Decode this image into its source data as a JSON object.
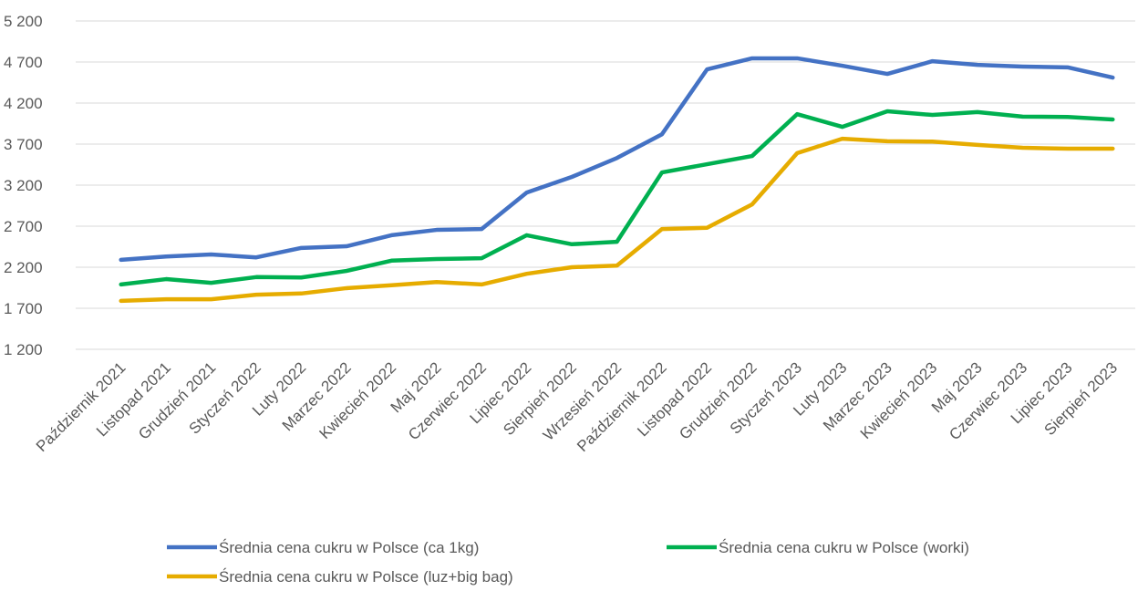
{
  "chart_data": {
    "type": "line",
    "categories": [
      "Październik 2021",
      "Listopad 2021",
      "Grudzień 2021",
      "Styczeń 2022",
      "Luty 2022",
      "Marzec 2022",
      "Kwiecień 2022",
      "Maj 2022",
      "Czerwiec 2022",
      "Lipiec 2022",
      "Sierpień 2022",
      "Wrzesień 2022",
      "Październik 2022",
      "Listopad 2022",
      "Grudzień 2022",
      "Styczeń 2023",
      "Luty 2023",
      "Marzec 2023",
      "Kwiecień 2023",
      "Maj 2023",
      "Czerwiec 2023",
      "Lipiec 2023",
      "Sierpień 2023"
    ],
    "series": [
      {
        "name": "Średnia cena cukru w Polsce (ca 1kg)",
        "color": "#4472c4",
        "values": [
          2290,
          2330,
          2355,
          2320,
          2435,
          2455,
          2590,
          2655,
          2665,
          3110,
          3300,
          3530,
          3820,
          4610,
          4745,
          4745,
          4655,
          4555,
          4710,
          4665,
          4645,
          4635,
          4510
        ]
      },
      {
        "name": "Średnia cena cukru w Polsce (worki)",
        "color": "#00b050",
        "values": [
          1990,
          2055,
          2010,
          2080,
          2075,
          2155,
          2280,
          2300,
          2310,
          2590,
          2480,
          2510,
          3355,
          3455,
          3555,
          4065,
          3910,
          4100,
          4055,
          4090,
          4035,
          4030,
          4000
        ]
      },
      {
        "name": "Średnia cena cukru w Polsce (luz+big bag)",
        "color": "#e6ac00",
        "values": [
          1790,
          1810,
          1810,
          1865,
          1880,
          1945,
          1980,
          2020,
          1990,
          2120,
          2200,
          2220,
          2665,
          2680,
          2965,
          3590,
          3765,
          3735,
          3730,
          3690,
          3655,
          3645,
          3645
        ]
      }
    ],
    "ylim": [
      1200,
      5200
    ],
    "yticks": [
      {
        "value": 1200,
        "label": "1 200"
      },
      {
        "value": 1700,
        "label": "1 700"
      },
      {
        "value": 2200,
        "label": "2 200"
      },
      {
        "value": 2700,
        "label": "2 700"
      },
      {
        "value": 3200,
        "label": "3 200"
      },
      {
        "value": 3700,
        "label": "3 700"
      },
      {
        "value": 4200,
        "label": "4 200"
      },
      {
        "value": 4700,
        "label": "4 700"
      },
      {
        "value": 5200,
        "label": "5 200"
      }
    ],
    "grid": true
  }
}
